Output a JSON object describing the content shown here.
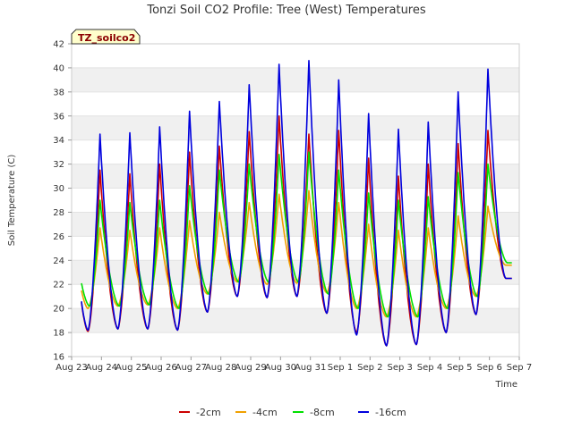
{
  "chart_data": {
    "type": "line",
    "title": "Tonzi Soil CO2 Profile: Tree (West) Temperatures",
    "xlabel": "Time",
    "ylabel": "Soil Temperature (C)",
    "tag_label": "TZ_soilco2",
    "ylim": [
      16,
      42
    ],
    "yticks": [
      16,
      18,
      20,
      22,
      24,
      26,
      28,
      30,
      32,
      34,
      36,
      38,
      40,
      42
    ],
    "xlim": [
      0,
      15
    ],
    "xticks": [
      {
        "x": 0,
        "label": "Aug 23"
      },
      {
        "x": 1,
        "label": "Aug 24"
      },
      {
        "x": 2,
        "label": "Aug 25"
      },
      {
        "x": 3,
        "label": "Aug 26"
      },
      {
        "x": 4,
        "label": "Aug 27"
      },
      {
        "x": 5,
        "label": "Aug 28"
      },
      {
        "x": 6,
        "label": "Aug 29"
      },
      {
        "x": 7,
        "label": "Aug 30"
      },
      {
        "x": 8,
        "label": "Aug 31"
      },
      {
        "x": 9,
        "label": "Sep 1"
      },
      {
        "x": 10,
        "label": "Sep 2"
      },
      {
        "x": 11,
        "label": "Sep 3"
      },
      {
        "x": 12,
        "label": "Sep 4"
      },
      {
        "x": 13,
        "label": "Sep 5"
      },
      {
        "x": 14,
        "label": "Sep 6"
      },
      {
        "x": 15,
        "label": "Sep 7"
      }
    ],
    "grid": "horizontal bands",
    "legend_position": "bottom",
    "series": [
      {
        "name": "-2cm",
        "color": "#cc0000",
        "x": [
          0.33,
          0.55,
          0.95,
          1.55,
          1.95,
          2.55,
          2.95,
          3.55,
          3.95,
          4.55,
          4.95,
          5.55,
          5.95,
          6.55,
          6.95,
          7.55,
          7.95,
          8.55,
          8.95,
          9.55,
          9.95,
          10.55,
          10.95,
          11.55,
          11.95,
          12.55,
          12.95,
          13.55,
          13.95,
          14.55,
          14.75
        ],
        "y": [
          20.5,
          18.1,
          31.5,
          18.3,
          31.2,
          18.3,
          32.0,
          18.2,
          33.0,
          19.7,
          33.5,
          21.0,
          34.7,
          20.9,
          36.0,
          21.0,
          34.5,
          19.6,
          34.8,
          18.0,
          32.5,
          16.9,
          31.0,
          17.0,
          32.0,
          18.0,
          33.7,
          19.5,
          34.8,
          22.5,
          22.5
        ]
      },
      {
        "name": "-4cm",
        "color": "#f0a000",
        "x": [
          0.33,
          0.55,
          0.95,
          1.55,
          1.95,
          2.55,
          2.95,
          3.55,
          3.95,
          4.55,
          4.95,
          5.55,
          5.95,
          6.55,
          6.95,
          7.55,
          7.95,
          8.55,
          8.95,
          9.55,
          9.95,
          10.55,
          10.95,
          11.55,
          11.95,
          12.55,
          12.95,
          13.55,
          13.95,
          14.55,
          14.75
        ],
        "y": [
          21.5,
          20.0,
          26.7,
          20.2,
          26.5,
          20.3,
          26.7,
          20.0,
          27.3,
          21.2,
          28.0,
          22.2,
          28.8,
          22.0,
          29.5,
          22.1,
          29.8,
          21.3,
          28.8,
          20.0,
          27.0,
          19.3,
          26.5,
          19.3,
          26.7,
          20.0,
          27.7,
          21.0,
          28.5,
          23.6,
          23.6
        ]
      },
      {
        "name": "-8cm",
        "color": "#00e000",
        "x": [
          0.33,
          0.6,
          0.95,
          1.6,
          1.95,
          2.6,
          2.95,
          3.6,
          3.95,
          4.6,
          4.95,
          5.6,
          5.95,
          6.6,
          6.95,
          7.6,
          7.95,
          8.6,
          8.95,
          9.6,
          9.95,
          10.6,
          10.95,
          11.6,
          11.95,
          12.6,
          12.95,
          13.6,
          13.95,
          14.6,
          14.75
        ],
        "y": [
          22.1,
          20.2,
          29.0,
          20.2,
          28.8,
          20.3,
          29.0,
          20.0,
          30.2,
          21.2,
          31.5,
          22.2,
          32.0,
          22.2,
          32.8,
          22.2,
          33.0,
          21.2,
          31.5,
          20.0,
          29.6,
          19.3,
          29.0,
          19.3,
          29.3,
          20.0,
          31.3,
          21.0,
          32.0,
          23.8,
          23.8
        ]
      },
      {
        "name": "-16cm",
        "color": "#0000dd",
        "x": [
          0.33,
          0.55,
          0.95,
          1.55,
          1.95,
          2.55,
          2.95,
          3.55,
          3.95,
          4.55,
          4.95,
          5.55,
          5.95,
          6.55,
          6.95,
          7.55,
          7.95,
          8.55,
          8.95,
          9.55,
          9.95,
          10.55,
          10.95,
          11.55,
          11.95,
          12.55,
          12.95,
          13.55,
          13.95,
          14.55,
          14.75
        ],
        "y": [
          20.6,
          18.2,
          34.5,
          18.3,
          34.6,
          18.3,
          35.1,
          18.2,
          36.4,
          19.7,
          37.2,
          21.0,
          38.6,
          20.9,
          40.3,
          21.0,
          40.6,
          19.6,
          39.0,
          17.8,
          36.2,
          16.9,
          34.9,
          17.0,
          35.5,
          18.0,
          38.0,
          19.5,
          39.9,
          22.5,
          22.5
        ]
      }
    ]
  }
}
